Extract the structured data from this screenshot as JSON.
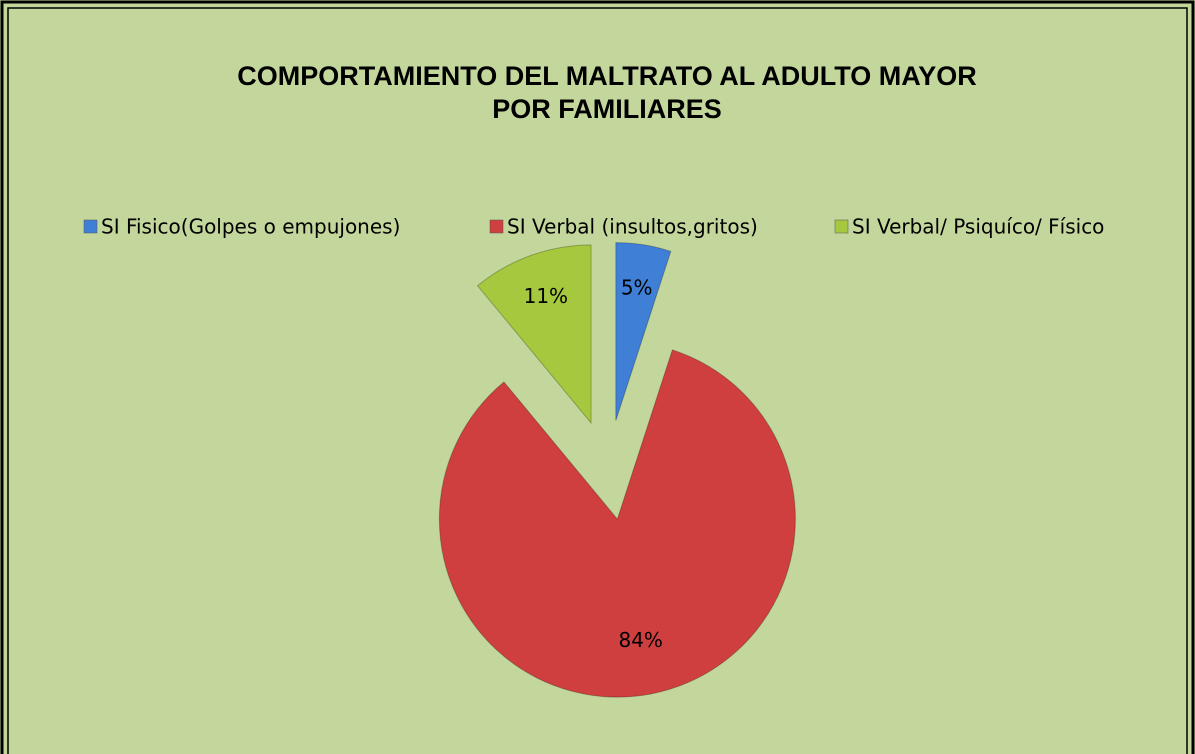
{
  "chart_data": {
    "type": "pie",
    "title": [
      "COMPORTAMIENTO DEL MALTRATO AL ADULTO MAYOR",
      "POR FAMILIARES"
    ],
    "categories": [
      "SI Fisico(Golpes o empujones)",
      "SI Verbal (insultos,gritos)",
      "SI Verbal/ Psiquíco/ Físico"
    ],
    "values": [
      5,
      84,
      11
    ],
    "value_labels": [
      "5%",
      "84%",
      "11%"
    ],
    "colors": [
      "#3f7fd6",
      "#d03f3f",
      "#a6c83f"
    ],
    "legend": "top"
  }
}
